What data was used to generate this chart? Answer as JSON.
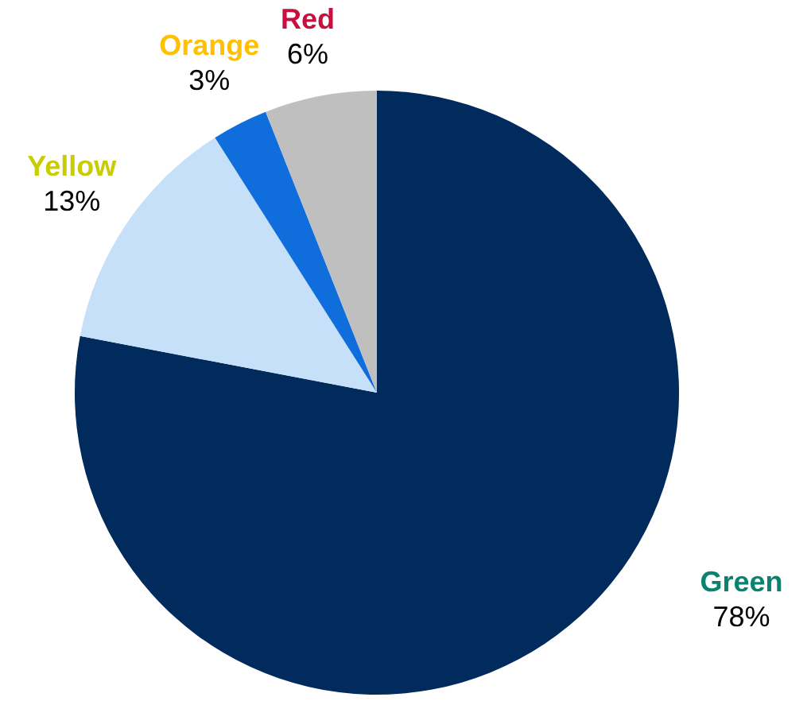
{
  "chart_data": {
    "type": "pie",
    "categories": [
      "Green",
      "Yellow",
      "Orange",
      "Red"
    ],
    "values": [
      78,
      13,
      3,
      6
    ],
    "colors": [
      "#002b5c",
      "#c6e0fa",
      "#0f6ddc",
      "#bfbfbf"
    ],
    "value_labels": [
      "78%",
      "13%",
      "3%",
      "6%"
    ]
  }
}
